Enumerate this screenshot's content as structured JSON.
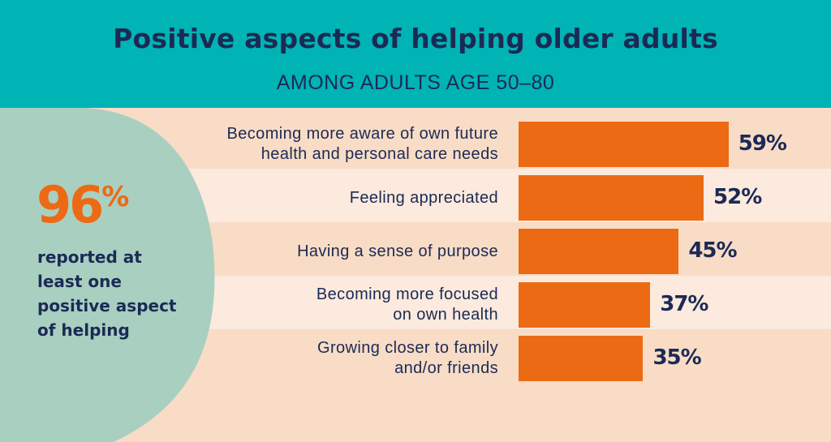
{
  "header": {
    "title": "Positive aspects of helping older adults",
    "subtitle": "AMONG ADULTS AGE 50–80"
  },
  "highlight": {
    "number": "96",
    "percent_sign": "%",
    "text": "reported at least one positive aspect of helping"
  },
  "colors": {
    "header_bg": "#00b3b4",
    "bar": "#ec6a14",
    "text_dark": "#1b2a55",
    "blob": "#a9cfc0"
  },
  "chart_data": {
    "type": "bar",
    "orientation": "horizontal",
    "categories": [
      "Becoming more aware of own future health and personal care needs",
      "Feeling appreciated",
      "Having a sense of purpose",
      "Becoming more focused on own health",
      "Growing closer to family and/or friends"
    ],
    "values": [
      59,
      52,
      45,
      37,
      35
    ],
    "value_labels": [
      "59%",
      "52%",
      "45%",
      "37%",
      "35%"
    ],
    "title": "Positive aspects of helping older adults",
    "subtitle": "AMONG ADULTS AGE 50–80",
    "xlim": [
      0,
      100
    ],
    "grid": false
  }
}
